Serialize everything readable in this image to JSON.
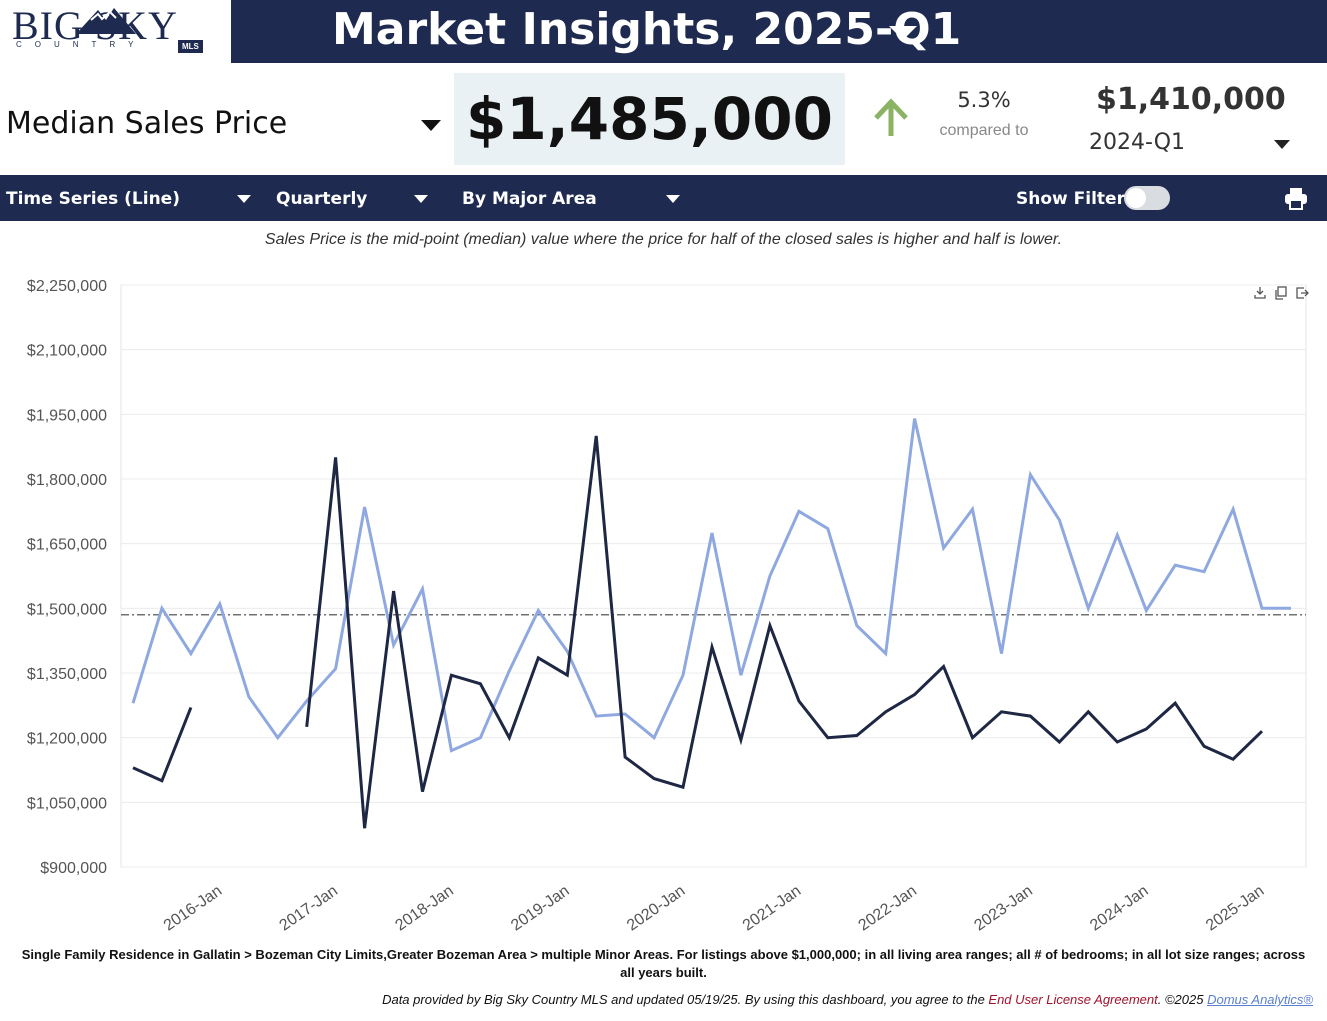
{
  "header": {
    "logo": {
      "text": "BIG SKY",
      "sub": "COUNTRY",
      "badge": "MLS"
    },
    "title": "Market Insights, 2025-Q1"
  },
  "kpi": {
    "metric_label": "Median Sales Price",
    "value": "$1,485,000",
    "change_pct": "5.3%",
    "compared_label": "compared to",
    "prev_value": "$1,410,000",
    "prev_period": "2024-Q1",
    "trend": "up",
    "trend_color": "#8bb363"
  },
  "toolbar": {
    "chart_type": "Time Series (Line)",
    "interval": "Quarterly",
    "grouping": "By Major Area",
    "filters_label": "Show Filters:",
    "filters_on": false
  },
  "description": "Sales Price is the mid-point (median) value where the price for half of the closed sales is higher and half is lower.",
  "chart_data": {
    "type": "line",
    "title": "",
    "xlabel": "",
    "ylabel": "",
    "ylim": [
      900000,
      2250000
    ],
    "yticks": [
      900000,
      1050000,
      1200000,
      1350000,
      1500000,
      1650000,
      1800000,
      1950000,
      2100000,
      2250000
    ],
    "ytick_labels": [
      "$900,000",
      "$1,050,000",
      "$1,200,000",
      "$1,350,000",
      "$1,500,000",
      "$1,650,000",
      "$1,800,000",
      "$1,950,000",
      "$2,100,000",
      "$2,250,000"
    ],
    "x": [
      "2015-Q3",
      "2015-Q4",
      "2016-Q1",
      "2016-Q2",
      "2016-Q3",
      "2016-Q4",
      "2017-Q1",
      "2017-Q2",
      "2017-Q3",
      "2017-Q4",
      "2018-Q1",
      "2018-Q2",
      "2018-Q3",
      "2018-Q4",
      "2019-Q1",
      "2019-Q2",
      "2019-Q3",
      "2019-Q4",
      "2020-Q1",
      "2020-Q2",
      "2020-Q3",
      "2020-Q4",
      "2021-Q1",
      "2021-Q2",
      "2021-Q3",
      "2021-Q4",
      "2022-Q1",
      "2022-Q2",
      "2022-Q3",
      "2022-Q4",
      "2023-Q1",
      "2023-Q2",
      "2023-Q3",
      "2023-Q4",
      "2024-Q1",
      "2024-Q2",
      "2024-Q3",
      "2024-Q4",
      "2025-Q1",
      "2025-Q2",
      "2025-Q3"
    ],
    "xtick_labels": [
      "2016-Jan",
      "2017-Jan",
      "2018-Jan",
      "2019-Jan",
      "2020-Jan",
      "2021-Jan",
      "2022-Jan",
      "2023-Jan",
      "2024-Jan",
      "2025-Jan"
    ],
    "xtick_positions": [
      "2016-Q1",
      "2017-Q1",
      "2018-Q1",
      "2019-Q1",
      "2020-Q1",
      "2021-Q1",
      "2022-Q1",
      "2023-Q1",
      "2024-Q1",
      "2025-Q1"
    ],
    "reference_line": 1485000,
    "grid": true,
    "series": [
      {
        "color": "#8fa9e0",
        "values": [
          1280000,
          1500000,
          1395000,
          1510000,
          1295000,
          1200000,
          1285000,
          1360000,
          1735000,
          1415000,
          1545000,
          1170000,
          1200000,
          1355000,
          1495000,
          1400000,
          1250000,
          1255000,
          1200000,
          1345000,
          1675000,
          1345000,
          1575000,
          1725000,
          1685000,
          1460000,
          1395000,
          1940000,
          1640000,
          1730000,
          1395000,
          1810000,
          1705000,
          1500000,
          1670000,
          1495000,
          1600000,
          1585000,
          1730000,
          1500000,
          1500000
        ]
      },
      {
        "color": "#1e2743",
        "values": [
          1130000,
          1100000,
          1270000,
          null,
          null,
          null,
          1225000,
          1850000,
          990000,
          1540000,
          1075000,
          1345000,
          1325000,
          1200000,
          1385000,
          1345000,
          1900000,
          1155000,
          1105000,
          1085000,
          1410000,
          1195000,
          1460000,
          1285000,
          1200000,
          1205000,
          1260000,
          1300000,
          1365000,
          1200000,
          1260000,
          1250000,
          1190000,
          1260000,
          1190000,
          1220000,
          1280000,
          1180000,
          1150000,
          1215000,
          null
        ]
      }
    ]
  },
  "chart_tools": [
    "download-icon",
    "copy-icon",
    "export-icon"
  ],
  "footnote": "Single Family Residence in Gallatin > Bozeman City Limits,Greater Bozeman Area > multiple Minor Areas. For listings above $1,000,000; in all living area ranges; all # of bedrooms; in all lot size ranges; across all years built.",
  "credit": {
    "prefix": "Data provided by Big Sky Country MLS and updated 05/19/25.  By using this dashboard, you agree to the ",
    "eula": "End User License Agreement",
    "middle": ".  ©2025 ",
    "domus": "Domus Analytics®"
  }
}
